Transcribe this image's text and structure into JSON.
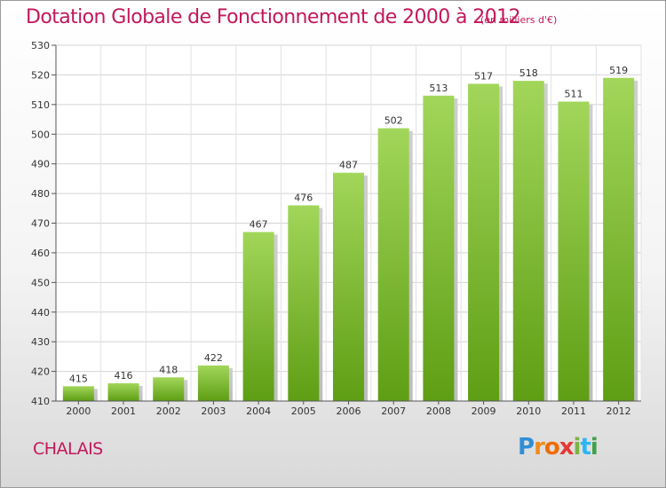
{
  "header": {
    "title": "Dotation Globale de Fonctionnement de 2000 à 2012",
    "subtitle": "(en milliers d'€)"
  },
  "footer": {
    "commune": "CHALAIS",
    "logo_text": "Proxiti"
  },
  "colors": {
    "title": "#c2185b",
    "bar_top": "#a2d65a",
    "bar_bottom": "#5e9e14"
  },
  "chart_data": {
    "type": "bar",
    "title": "Dotation Globale de Fonctionnement de 2000 à 2012",
    "subtitle": "(en milliers d'€)",
    "xlabel": "",
    "ylabel": "",
    "categories": [
      "2000",
      "2001",
      "2002",
      "2003",
      "2004",
      "2005",
      "2006",
      "2007",
      "2008",
      "2009",
      "2010",
      "2011",
      "2012"
    ],
    "values": [
      415,
      416,
      418,
      422,
      467,
      476,
      487,
      502,
      513,
      517,
      518,
      511,
      519
    ],
    "ylim": [
      410,
      530
    ],
    "yticks": [
      410,
      420,
      430,
      440,
      450,
      460,
      470,
      480,
      490,
      500,
      510,
      520,
      530
    ],
    "grid": true,
    "data_labels": true
  }
}
